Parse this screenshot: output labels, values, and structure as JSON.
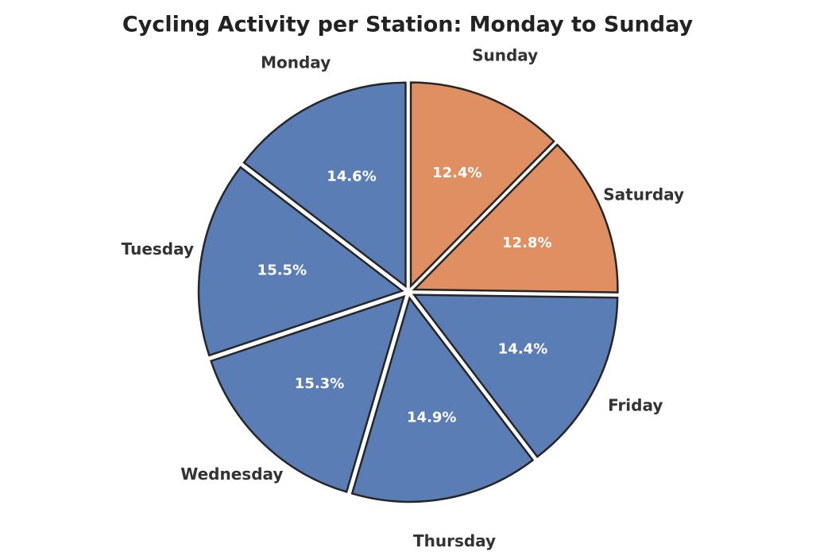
{
  "chart_data": {
    "type": "pie",
    "title": "Cycling Activity per Station: Monday to Sunday",
    "categories": [
      "Monday",
      "Tuesday",
      "Wednesday",
      "Thursday",
      "Friday",
      "Saturday",
      "Sunday"
    ],
    "values": [
      14.6,
      15.5,
      15.3,
      14.9,
      14.4,
      12.8,
      12.4
    ],
    "value_labels": [
      "14.6%",
      "15.5%",
      "15.3%",
      "14.9%",
      "14.4%",
      "12.8%",
      "12.4%"
    ],
    "colors": [
      "#5b7db6",
      "#5b7db6",
      "#5b7db6",
      "#5b7db6",
      "#5b7db6",
      "#e08f62",
      "#e08f62"
    ],
    "start_angle": 90,
    "direction": "counterclockwise"
  }
}
